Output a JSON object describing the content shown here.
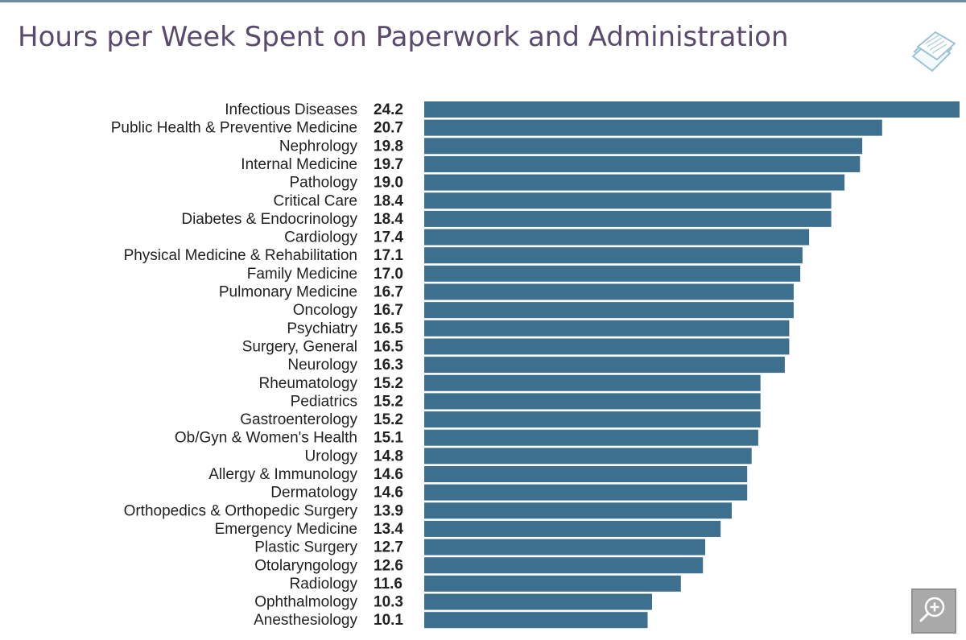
{
  "page": {
    "title": "Hours per Week Spent on Paperwork and Administration",
    "icons": {
      "document": "document-stack-icon",
      "zoom": "zoom-in-icon"
    },
    "colors": {
      "bar": "#3d6f8e",
      "title": "#5a4a6e",
      "zoom_button": "#a9a9a9"
    }
  },
  "chart_data": {
    "type": "bar",
    "orientation": "horizontal",
    "title": "Hours per Week Spent on Paperwork and Administration",
    "xlabel": "",
    "ylabel": "",
    "xlim": [
      0,
      24.2
    ],
    "grid": false,
    "value_labels": true,
    "categories": [
      "Infectious Diseases",
      "Public Health & Preventive Medicine",
      "Nephrology",
      "Internal Medicine",
      "Pathology",
      "Critical Care",
      "Diabetes & Endocrinology",
      "Cardiology",
      "Physical Medicine & Rehabilitation",
      "Family Medicine",
      "Pulmonary Medicine",
      "Oncology",
      "Psychiatry",
      "Surgery, General",
      "Neurology",
      "Rheumatology",
      "Pediatrics",
      "Gastroenterology",
      "Ob/Gyn & Women's Health",
      "Urology",
      "Allergy & Immunology",
      "Dermatology",
      "Orthopedics & Orthopedic Surgery",
      "Emergency Medicine",
      "Plastic Surgery",
      "Otolaryngology",
      "Radiology",
      "Ophthalmology",
      "Anesthesiology"
    ],
    "values": [
      24.2,
      20.7,
      19.8,
      19.7,
      19.0,
      18.4,
      18.4,
      17.4,
      17.1,
      17.0,
      16.7,
      16.7,
      16.5,
      16.5,
      16.3,
      15.2,
      15.2,
      15.2,
      15.1,
      14.8,
      14.6,
      14.6,
      13.9,
      13.4,
      12.7,
      12.6,
      11.6,
      10.3,
      10.1
    ],
    "value_label_text": [
      "24.2",
      "20.7",
      "19.8",
      "19.7",
      "19.0",
      "18.4",
      "18.4",
      "17.4",
      "17.1",
      "17.0",
      "16.7",
      "16.7",
      "16.5",
      "16.5",
      "16.3",
      "15.2",
      "15.2",
      "15.2",
      "15.1",
      "14.8",
      "14.6",
      "14.6",
      "13.9",
      "13.4",
      "12.7",
      "12.6",
      "11.6",
      "10.3",
      "10.1"
    ],
    "color": "#3d6f8e"
  }
}
